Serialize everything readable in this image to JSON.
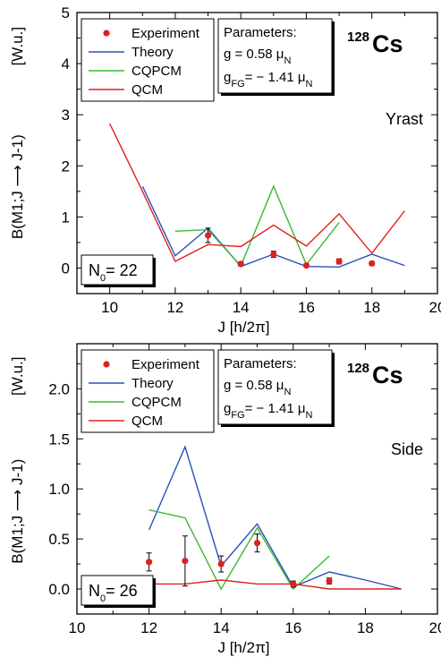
{
  "chart_data": [
    {
      "type": "line",
      "panel_label": "Yrast",
      "nucleus": {
        "mass": "128",
        "symbol": "Cs"
      },
      "ylabel": "B(M1;J ⟶ J-1)",
      "yunit": "[W.u.]",
      "xlabel": "J   [h/2π]",
      "xlim": [
        9,
        20
      ],
      "ylim": [
        -0.5,
        5
      ],
      "xticks": [
        "10",
        "12",
        "14",
        "16",
        "18",
        "20"
      ],
      "yticks": [
        "0",
        "1",
        "2",
        "3",
        "4",
        "5"
      ],
      "legend_position": "top-left",
      "parameters": {
        "title": "Parameters:",
        "g_line": "g = 0.58 μN",
        "gfg_line": "gFG= − 1.41 μN"
      },
      "n0_label": "N0= 22",
      "series": [
        {
          "name": "Experiment",
          "kind": "points",
          "color": "#e02020",
          "x": [
            13,
            14,
            15,
            16,
            17,
            18
          ],
          "y": [
            0.64,
            0.08,
            0.27,
            0.05,
            0.13,
            0.09
          ],
          "err": [
            0.14,
            0.04,
            0.06,
            0.03,
            0.05,
            0.04
          ]
        },
        {
          "name": "Theory",
          "kind": "line",
          "color": "#2850b8",
          "x": [
            11,
            12,
            13,
            14,
            15,
            16,
            17,
            18,
            19
          ],
          "y": [
            1.6,
            0.24,
            0.78,
            0.03,
            0.27,
            0.03,
            0.02,
            0.27,
            0.05
          ]
        },
        {
          "name": "CQPCM",
          "kind": "line",
          "color": "#3cb832",
          "x": [
            12,
            13,
            14,
            15,
            16,
            17
          ],
          "y": [
            0.72,
            0.75,
            0.04,
            1.6,
            0.07,
            0.89
          ]
        },
        {
          "name": "QCM",
          "kind": "line",
          "color": "#e02020",
          "x": [
            10,
            11,
            12,
            13,
            14,
            15,
            16,
            17,
            18,
            19
          ],
          "y": [
            2.83,
            1.5,
            0.13,
            0.46,
            0.42,
            0.84,
            0.43,
            1.06,
            0.29,
            1.12
          ]
        }
      ]
    },
    {
      "type": "line",
      "panel_label": "Side",
      "nucleus": {
        "mass": "128",
        "symbol": "Cs"
      },
      "ylabel": "B(M1;J ⟶ J-1)",
      "yunit": "[W.u.]",
      "xlabel": "J   [h/2π]",
      "xlim": [
        10,
        20
      ],
      "ylim": [
        -0.25,
        2.45
      ],
      "xticks": [
        "10",
        "12",
        "14",
        "16",
        "18",
        "20"
      ],
      "yticks": [
        "0.0",
        "0.5",
        "1.0",
        "1.5",
        "2.0"
      ],
      "legend_position": "top-left",
      "parameters": {
        "title": "Parameters:",
        "g_line": "g = 0.58 μN",
        "gfg_line": "gFG= − 1.41 μN"
      },
      "n0_label": "N0= 26",
      "series": [
        {
          "name": "Experiment",
          "kind": "points",
          "color": "#e02020",
          "x": [
            12,
            13,
            14,
            15,
            16,
            17
          ],
          "y": [
            0.27,
            0.28,
            0.25,
            0.46,
            0.05,
            0.08
          ],
          "err": [
            0.09,
            0.25,
            0.08,
            0.09,
            0.03,
            0.03
          ]
        },
        {
          "name": "Theory",
          "kind": "line",
          "color": "#2850b8",
          "x": [
            12,
            13,
            14,
            15,
            16,
            17,
            18,
            19
          ],
          "y": [
            0.59,
            1.42,
            0.23,
            0.65,
            0.02,
            0.17,
            0.09,
            0.0
          ]
        },
        {
          "name": "CQPCM",
          "kind": "line",
          "color": "#3cb832",
          "x": [
            12,
            13,
            14,
            15,
            16,
            17
          ],
          "y": [
            0.79,
            0.71,
            0.0,
            0.61,
            0.0,
            0.33
          ]
        },
        {
          "name": "QCM",
          "kind": "line",
          "color": "#e02020",
          "x": [
            12,
            13,
            14,
            15,
            16,
            17,
            18,
            19
          ],
          "y": [
            0.05,
            0.05,
            0.09,
            0.05,
            0.05,
            0.0,
            0.0,
            0.0
          ]
        }
      ]
    }
  ]
}
